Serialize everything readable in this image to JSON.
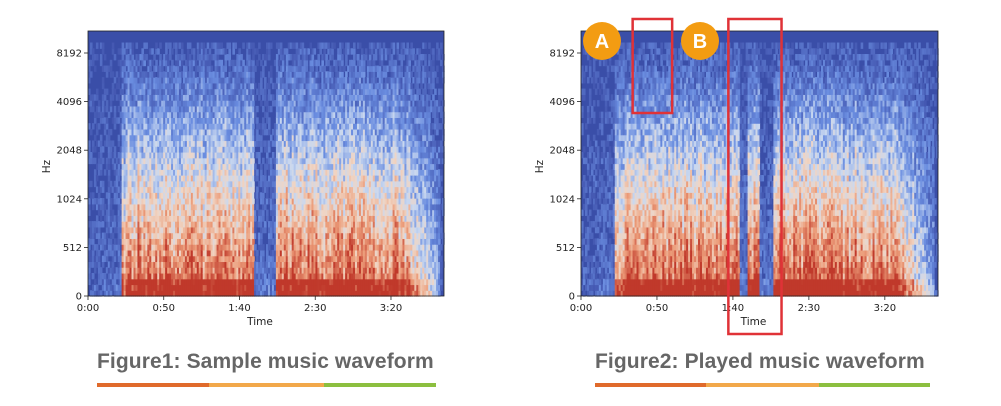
{
  "colors": {
    "spectrogram_high": "#c2512e",
    "spectrogram_mid": "#f0c4ab",
    "spectrogram_low": "#3a4ea8",
    "highlight_box": "#e03237",
    "badge": "#f39c12",
    "caption_text": "#666666",
    "underline": [
      "#e06a2b",
      "#f2a84a",
      "#8cbf3f"
    ]
  },
  "figures": [
    {
      "caption": "Figure1: Sample music waveform",
      "chart_data": {
        "type": "heatmap",
        "xlabel": "Time",
        "ylabel": "Hz",
        "x_ticks": [
          "0:00",
          "0:50",
          "1:40",
          "2:30",
          "3:20"
        ],
        "x_tick_seconds": [
          0,
          50,
          100,
          150,
          200
        ],
        "y_ticks": [
          "0",
          "512",
          "1024",
          "2048",
          "4096",
          "8192"
        ],
        "duration_seconds": 235,
        "y_scale": "log2-like (mel)",
        "low_energy_regions_seconds": [
          [
            0,
            22
          ],
          [
            110,
            124
          ],
          [
            232,
            235
          ]
        ]
      }
    },
    {
      "caption": "Figure2: Played music waveform",
      "chart_data": {
        "type": "heatmap",
        "xlabel": "Time",
        "ylabel": "Hz",
        "x_ticks": [
          "0:00",
          "0:50",
          "1:40",
          "2:30",
          "3:20"
        ],
        "x_tick_seconds": [
          0,
          50,
          100,
          150,
          200
        ],
        "y_ticks": [
          "0",
          "512",
          "1024",
          "2048",
          "4096",
          "8192"
        ],
        "duration_seconds": 235,
        "y_scale": "log2-like (mel)",
        "low_energy_regions_seconds": [
          [
            0,
            22
          ],
          [
            105,
            110
          ],
          [
            118,
            126
          ],
          [
            232,
            235
          ]
        ],
        "annotations": [
          {
            "label": "A",
            "time_range_seconds": [
              34,
              60
            ],
            "freq_range": [
              "4096",
              "8192+"
            ]
          },
          {
            "label": "B",
            "time_range_seconds": [
              97,
              132
            ],
            "freq_range": [
              "0",
              "8192+"
            ]
          }
        ]
      }
    }
  ]
}
